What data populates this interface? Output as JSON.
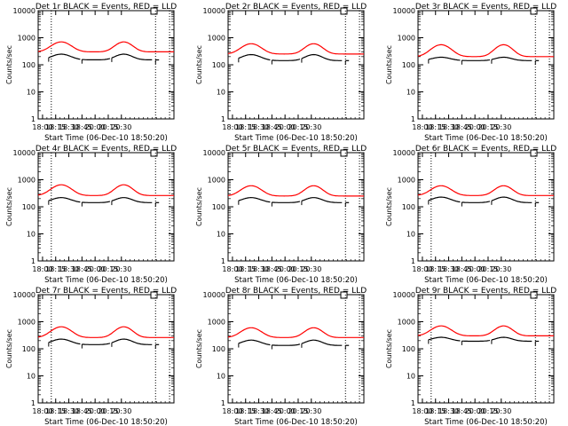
{
  "figure": {
    "background": "#ffffff",
    "axis_color": "#000000",
    "events_color": "#000000",
    "lld_color": "#ff0000"
  },
  "chart_data": [
    {
      "type": "line",
      "title": "Det 1r BLACK = Events, RED = LLD",
      "xlabel": "Start Time (06-Dec-10 18:50:20)",
      "ylabel": "Counts/sec",
      "yscale": "log",
      "ylim": [
        1,
        10000
      ],
      "xlim": [
        "17:55",
        "20:30"
      ],
      "x_ticks": [
        "18:00",
        "18:15",
        "18:30",
        "18:45",
        "20:00",
        "20:15",
        "20:30"
      ],
      "y_ticks": [
        "1",
        "10",
        "100",
        "1000",
        "10000"
      ],
      "vlines": [
        "18:10",
        "20:09",
        "20:25"
      ],
      "lld_peak": 700,
      "lld_base": 300,
      "evt_peak": 260,
      "evt_base": 160
    },
    {
      "type": "line",
      "title": "Det 2r BLACK = Events, RED = LLD",
      "xlabel": "Start Time (06-Dec-10 18:50:20)",
      "ylabel": "Counts/sec",
      "yscale": "log",
      "ylim": [
        1,
        10000
      ],
      "xlim": [
        "17:55",
        "20:30"
      ],
      "x_ticks": [
        "18:00",
        "18:15",
        "18:30",
        "18:45",
        "20:00",
        "20:15",
        "20:30"
      ],
      "y_ticks": [
        "1",
        "10",
        "100",
        "1000",
        "10000"
      ],
      "vlines": [
        "20:09",
        "20:25"
      ],
      "lld_peak": 600,
      "lld_base": 250,
      "evt_peak": 250,
      "evt_base": 150
    },
    {
      "type": "line",
      "title": "Det 3r BLACK = Events, RED = LLD",
      "xlabel": "Start Time (06-Dec-10 18:50:20)",
      "ylabel": "Counts/sec",
      "yscale": "log",
      "ylim": [
        1,
        10000
      ],
      "xlim": [
        "17:55",
        "20:30"
      ],
      "x_ticks": [
        "18:00",
        "18:15",
        "18:30",
        "18:45",
        "20:00",
        "20:15",
        "20:30"
      ],
      "y_ticks": [
        "1",
        "10",
        "100",
        "1000",
        "10000"
      ],
      "vlines": [
        "20:09",
        "20:25"
      ],
      "lld_peak": 550,
      "lld_base": 200,
      "evt_peak": 200,
      "evt_base": 150
    },
    {
      "type": "line",
      "title": "Det 4r BLACK = Events, RED = LLD",
      "xlabel": "Start Time (06-Dec-10 18:50:20)",
      "ylabel": "Counts/sec",
      "yscale": "log",
      "ylim": [
        1,
        10000
      ],
      "xlim": [
        "17:55",
        "20:30"
      ],
      "x_ticks": [
        "18:00",
        "18:15",
        "18:30",
        "18:45",
        "20:00",
        "20:15",
        "20:30"
      ],
      "y_ticks": [
        "1",
        "10",
        "100",
        "1000",
        "10000"
      ],
      "vlines": [
        "18:10",
        "20:09",
        "20:25"
      ],
      "lld_peak": 650,
      "lld_base": 260,
      "evt_peak": 230,
      "evt_base": 150
    },
    {
      "type": "line",
      "title": "Det 5r BLACK = Events, RED = LLD",
      "xlabel": "Start Time (06-Dec-10 18:50:20)",
      "ylabel": "Counts/sec",
      "yscale": "log",
      "ylim": [
        1,
        10000
      ],
      "xlim": [
        "17:55",
        "20:30"
      ],
      "x_ticks": [
        "18:00",
        "18:15",
        "18:30",
        "18:45",
        "20:00",
        "20:15",
        "20:30"
      ],
      "y_ticks": [
        "1",
        "10",
        "100",
        "1000",
        "10000"
      ],
      "vlines": [
        "20:09",
        "20:25"
      ],
      "lld_peak": 600,
      "lld_base": 250,
      "evt_peak": 230,
      "evt_base": 150
    },
    {
      "type": "line",
      "title": "Det 6r BLACK = Events, RED = LLD",
      "xlabel": "Start Time (06-Dec-10 18:50:20)",
      "ylabel": "Counts/sec",
      "yscale": "log",
      "ylim": [
        1,
        10000
      ],
      "xlim": [
        "17:55",
        "20:30"
      ],
      "x_ticks": [
        "18:00",
        "18:15",
        "18:30",
        "18:45",
        "20:00",
        "20:15",
        "20:30"
      ],
      "y_ticks": [
        "1",
        "10",
        "100",
        "1000",
        "10000"
      ],
      "vlines": [
        "18:10",
        "20:09",
        "20:25"
      ],
      "lld_peak": 600,
      "lld_base": 260,
      "evt_peak": 240,
      "evt_base": 150
    },
    {
      "type": "line",
      "title": "Det 7r BLACK = Events, RED = LLD",
      "xlabel": "Start Time (06-Dec-10 18:50:20)",
      "ylabel": "Counts/sec",
      "yscale": "log",
      "ylim": [
        1,
        10000
      ],
      "xlim": [
        "17:55",
        "20:30"
      ],
      "x_ticks": [
        "18:00",
        "18:15",
        "18:30",
        "18:45",
        "20:00",
        "20:15",
        "20:30"
      ],
      "y_ticks": [
        "1",
        "10",
        "100",
        "1000",
        "10000"
      ],
      "vlines": [
        "18:10",
        "20:09",
        "20:25"
      ],
      "lld_peak": 650,
      "lld_base": 260,
      "evt_peak": 240,
      "evt_base": 150
    },
    {
      "type": "line",
      "title": "Det 8r BLACK = Events, RED = LLD",
      "xlabel": "Start Time (06-Dec-10 18:50:20)",
      "ylabel": "Counts/sec",
      "yscale": "log",
      "ylim": [
        1,
        10000
      ],
      "xlim": [
        "17:55",
        "20:30"
      ],
      "x_ticks": [
        "18:00",
        "18:15",
        "18:30",
        "18:45",
        "20:00",
        "20:15",
        "20:30"
      ],
      "y_ticks": [
        "1",
        "10",
        "100",
        "1000",
        "10000"
      ],
      "vlines": [
        "20:09",
        "20:25"
      ],
      "lld_peak": 600,
      "lld_base": 260,
      "evt_peak": 220,
      "evt_base": 140
    },
    {
      "type": "line",
      "title": "Det 9r BLACK = Events, RED = LLD",
      "xlabel": "Start Time (06-Dec-10 18:50:20)",
      "ylabel": "Counts/sec",
      "yscale": "log",
      "ylim": [
        1,
        10000
      ],
      "xlim": [
        "17:55",
        "20:30"
      ],
      "x_ticks": [
        "18:00",
        "18:15",
        "18:30",
        "18:45",
        "20:00",
        "20:15",
        "20:30"
      ],
      "y_ticks": [
        "1",
        "10",
        "100",
        "1000",
        "10000"
      ],
      "vlines": [
        "18:10",
        "20:09",
        "20:25"
      ],
      "lld_peak": 700,
      "lld_base": 300,
      "evt_peak": 280,
      "evt_base": 200
    }
  ]
}
